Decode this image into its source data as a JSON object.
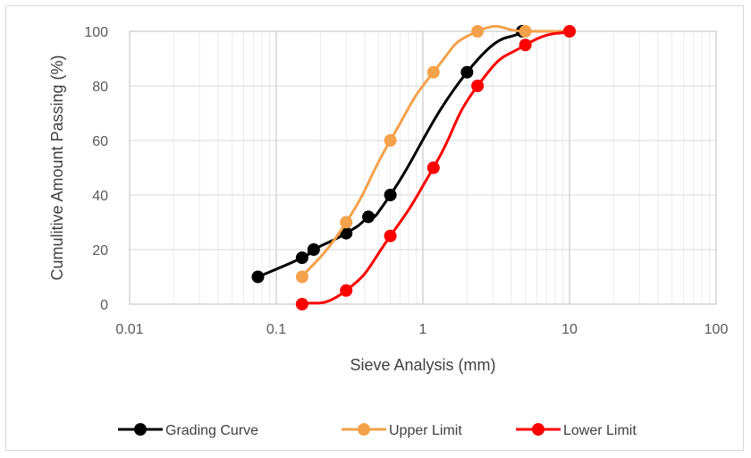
{
  "chart_data": {
    "type": "scatter",
    "title": "",
    "xlabel": "Sieve Analysis (mm)",
    "ylabel": "Cumulitive Amount Passing (%)",
    "xscale": "log",
    "xlim": [
      0.01,
      100
    ],
    "ylim": [
      0,
      100
    ],
    "x_ticks": [
      0.01,
      0.1,
      1,
      10,
      100
    ],
    "x_tick_labels": [
      "0.01",
      "0.1",
      "1",
      "10",
      "100"
    ],
    "y_ticks": [
      0,
      20,
      40,
      60,
      80,
      100
    ],
    "y_tick_labels": [
      "0",
      "20",
      "40",
      "60",
      "80",
      "100"
    ],
    "grid": true,
    "legend_position": "bottom",
    "series": [
      {
        "name": "Grading Curve",
        "color": "#000000",
        "x": [
          0.075,
          0.15,
          0.18,
          0.3,
          0.425,
          0.6,
          2,
          4.75
        ],
        "y": [
          10,
          17,
          20,
          26,
          32,
          40,
          85,
          100
        ]
      },
      {
        "name": "Upper Limit",
        "color": "#F4A14B",
        "x": [
          0.15,
          0.3,
          0.6,
          1.18,
          2.36,
          5,
          10
        ],
        "y": [
          10,
          30,
          60,
          85,
          100,
          100,
          100
        ]
      },
      {
        "name": "Lower Limit",
        "color": "#FF0000",
        "x": [
          0.15,
          0.3,
          0.6,
          1.18,
          2.36,
          5,
          10
        ],
        "y": [
          0,
          5,
          25,
          50,
          80,
          95,
          100
        ]
      }
    ]
  }
}
